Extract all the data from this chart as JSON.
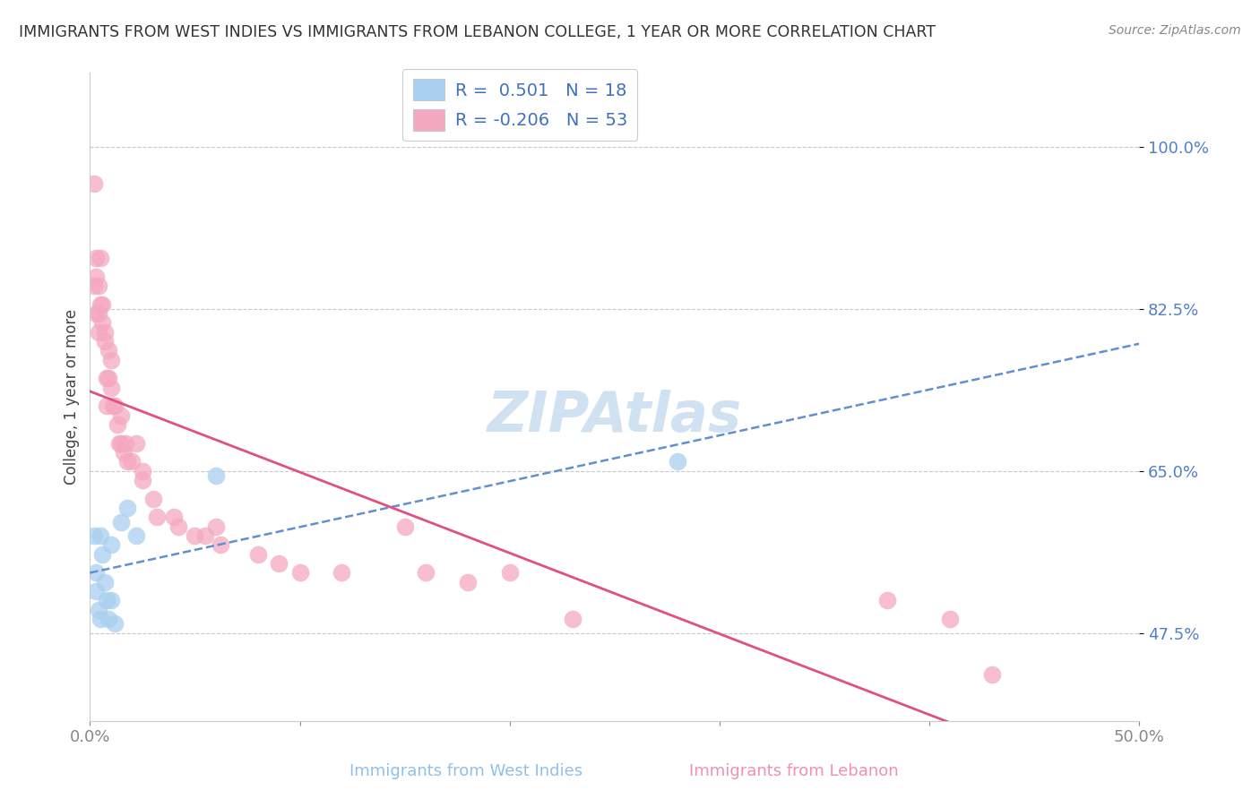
{
  "title": "IMMIGRANTS FROM WEST INDIES VS IMMIGRANTS FROM LEBANON COLLEGE, 1 YEAR OR MORE CORRELATION CHART",
  "source": "Source: ZipAtlas.com",
  "xlabel_west": "Immigrants from West Indies",
  "xlabel_lebanon": "Immigrants from Lebanon",
  "ylabel": "College, 1 year or more",
  "xlim": [
    0.0,
    0.5
  ],
  "ylim": [
    0.38,
    1.08
  ],
  "xticks": [
    0.0,
    0.1,
    0.2,
    0.3,
    0.4,
    0.5
  ],
  "xticklabels": [
    "0.0%",
    "",
    "",
    "",
    "",
    "50.0%"
  ],
  "yticks": [
    0.475,
    0.65,
    0.825,
    1.0
  ],
  "yticklabels": [
    "47.5%",
    "65.0%",
    "82.5%",
    "100.0%"
  ],
  "blue_R": 0.501,
  "blue_N": 18,
  "pink_R": -0.206,
  "pink_N": 53,
  "blue_color": "#A8D0F0",
  "pink_color": "#F4A8C0",
  "blue_line_color": "#6090D0",
  "pink_line_color": "#E05080",
  "watermark_color": "#C8DCF0",
  "blue_x": [
    0.002,
    0.003,
    0.003,
    0.004,
    0.005,
    0.005,
    0.006,
    0.007,
    0.008,
    0.009,
    0.01,
    0.01,
    0.012,
    0.015,
    0.018,
    0.022,
    0.06,
    0.28
  ],
  "blue_y": [
    0.58,
    0.54,
    0.52,
    0.5,
    0.49,
    0.58,
    0.56,
    0.53,
    0.51,
    0.49,
    0.57,
    0.51,
    0.485,
    0.595,
    0.61,
    0.58,
    0.645,
    0.66
  ],
  "pink_x": [
    0.002,
    0.002,
    0.003,
    0.003,
    0.003,
    0.004,
    0.004,
    0.004,
    0.005,
    0.005,
    0.006,
    0.006,
    0.007,
    0.007,
    0.008,
    0.008,
    0.009,
    0.009,
    0.01,
    0.01,
    0.011,
    0.012,
    0.013,
    0.014,
    0.015,
    0.015,
    0.016,
    0.017,
    0.018,
    0.02,
    0.022,
    0.025,
    0.025,
    0.03,
    0.032,
    0.04,
    0.042,
    0.05,
    0.055,
    0.06,
    0.062,
    0.08,
    0.09,
    0.1,
    0.12,
    0.15,
    0.16,
    0.18,
    0.2,
    0.23,
    0.38,
    0.41,
    0.43
  ],
  "pink_y": [
    0.96,
    0.85,
    0.88,
    0.86,
    0.82,
    0.85,
    0.82,
    0.8,
    0.88,
    0.83,
    0.83,
    0.81,
    0.8,
    0.79,
    0.75,
    0.72,
    0.78,
    0.75,
    0.77,
    0.74,
    0.72,
    0.72,
    0.7,
    0.68,
    0.71,
    0.68,
    0.67,
    0.68,
    0.66,
    0.66,
    0.68,
    0.65,
    0.64,
    0.62,
    0.6,
    0.6,
    0.59,
    0.58,
    0.58,
    0.59,
    0.57,
    0.56,
    0.55,
    0.54,
    0.54,
    0.59,
    0.54,
    0.53,
    0.54,
    0.49,
    0.51,
    0.49,
    0.43
  ]
}
